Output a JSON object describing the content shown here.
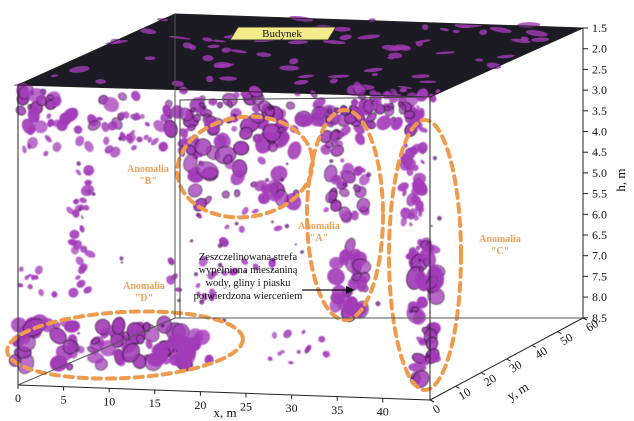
{
  "building_label": "Budynek",
  "axes": {
    "x": {
      "title": "x, m",
      "ticks": [
        "0",
        "5",
        "10",
        "15",
        "20",
        "25",
        "30",
        "35",
        "40"
      ]
    },
    "y": {
      "title": "y, m",
      "ticks": [
        "0",
        "10",
        "20",
        "30",
        "40",
        "50",
        "60"
      ]
    },
    "h": {
      "title": "h, m",
      "ticks": [
        "1.5",
        "2.0",
        "2.5",
        "3.0",
        "3.5",
        "4.0",
        "4.5",
        "5.0",
        "5.5",
        "6.0",
        "6.5",
        "7.0",
        "7.5",
        "8.0",
        "8.5"
      ]
    }
  },
  "anomalies": [
    {
      "id": "B",
      "word": "Anomalia",
      "letter": "\"B\""
    },
    {
      "id": "A",
      "word": "Anomalia",
      "letter": "\"A\""
    },
    {
      "id": "C",
      "word": "Anomalia",
      "letter": "\"C\""
    },
    {
      "id": "D",
      "word": "Anomalia",
      "letter": "\"D\""
    }
  ],
  "annotation": [
    "Zeszczelinowana strefa",
    "wypełniona mieszaniną",
    "wody, gliny i piasku",
    "potwierdzona wierceniem"
  ],
  "colors": {
    "anomaly": "#a23bb8",
    "anomaly_dark": "#5b1670",
    "ellipse": "#ee9b4d",
    "top_surface": "#1c1a22",
    "building": "#f4ec8a"
  }
}
